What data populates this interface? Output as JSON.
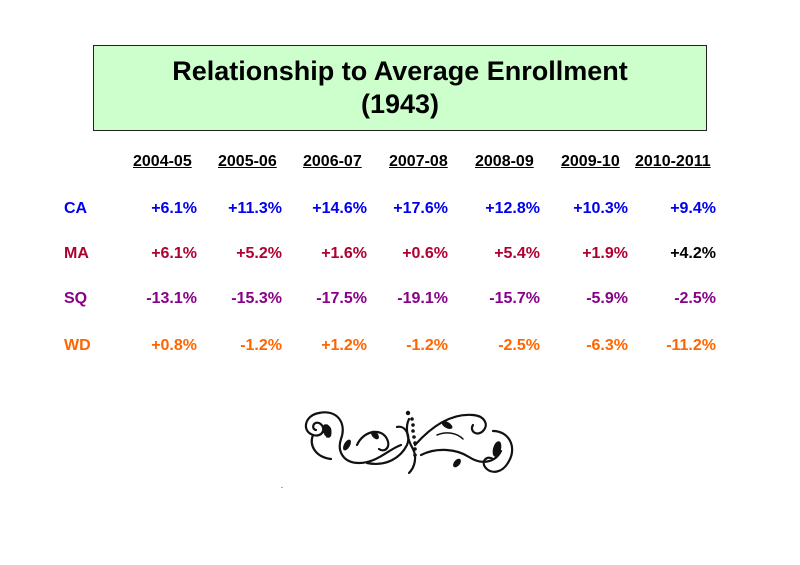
{
  "title": {
    "line1": "Relationship to Average Enrollment",
    "line2": "(1943)"
  },
  "columns": [
    "2004-05",
    "2005-06",
    "2006-07",
    "2007-08",
    "2008-09",
    "2009-10",
    "2010-2011"
  ],
  "rows": [
    {
      "label": "CA",
      "color": "#0000ee",
      "values": [
        "+6.1%",
        "+11.3%",
        "+14.6%",
        "+17.6%",
        "+12.8%",
        "+10.3%",
        "+9.4%"
      ]
    },
    {
      "label": "MA",
      "color": "#b00030",
      "values": [
        "+6.1%",
        "+5.2%",
        "+1.6%",
        "+0.6%",
        "+5.4%",
        "+1.9%",
        "+4.2%"
      ]
    },
    {
      "label": "SQ",
      "color": "#880088",
      "values": [
        "-13.1%",
        "-15.3%",
        "-17.5%",
        "-19.1%",
        "-15.7%",
        "-5.9%",
        "-2.5%"
      ]
    },
    {
      "label": "WD",
      "color": "#ff6600",
      "values": [
        "+0.8%",
        "-1.2%",
        "+1.2%",
        "-1.2%",
        "-2.5%",
        "-6.3%",
        "-11.2%"
      ]
    }
  ],
  "special_colors": {
    "MA.6": "#000000"
  },
  "decoration": {
    "icon": "flourish-ornament-icon"
  }
}
